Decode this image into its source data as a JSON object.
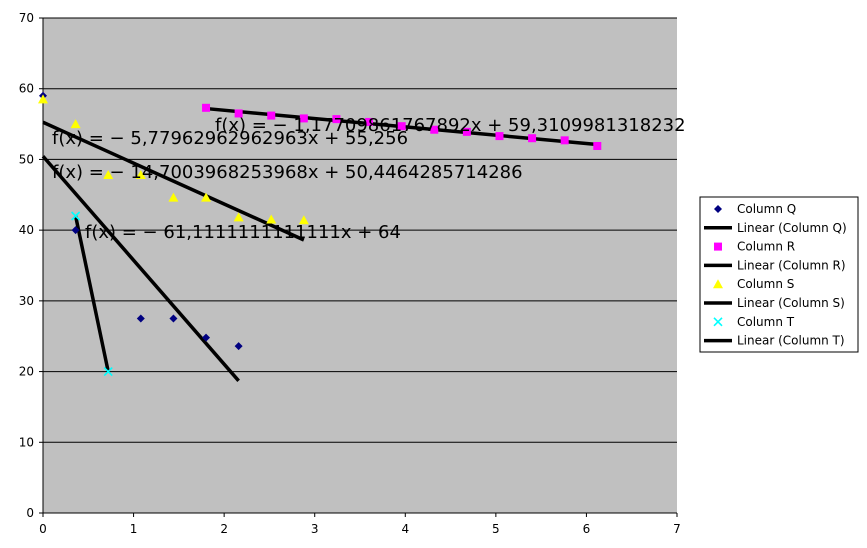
{
  "chart_data": {
    "type": "scatter",
    "xlim": [
      0,
      7
    ],
    "ylim": [
      0,
      70
    ],
    "xticks": [
      "0",
      "1",
      "2",
      "3",
      "4",
      "5",
      "6",
      "7"
    ],
    "yticks": [
      "0",
      "10",
      "20",
      "30",
      "40",
      "50",
      "60",
      "70"
    ],
    "grid": "horizontal",
    "legend_position": "right",
    "plot_background": "#c0c0c0",
    "series": [
      {
        "name": "Column Q",
        "marker": "diamond",
        "color": "#000080",
        "points": [
          [
            0,
            59
          ],
          [
            0.36,
            40
          ],
          [
            1.08,
            27.5
          ],
          [
            1.44,
            27.5
          ],
          [
            1.8,
            24.8
          ],
          [
            2.16,
            23.6
          ]
        ]
      },
      {
        "name": "Column R",
        "marker": "square",
        "color": "#ff00ff",
        "points": [
          [
            1.8,
            57.3
          ],
          [
            2.16,
            56.5
          ],
          [
            2.52,
            56.2
          ],
          [
            2.88,
            55.8
          ],
          [
            3.24,
            55.7
          ],
          [
            3.6,
            55.3
          ],
          [
            3.96,
            54.7
          ],
          [
            4.32,
            54.2
          ],
          [
            4.68,
            53.9
          ],
          [
            5.04,
            53.3
          ],
          [
            5.4,
            53.0
          ],
          [
            5.76,
            52.7
          ],
          [
            6.12,
            51.9
          ]
        ]
      },
      {
        "name": "Column S",
        "marker": "triangle",
        "color": "#ffff00",
        "points": [
          [
            0,
            58.5
          ],
          [
            0.36,
            55
          ],
          [
            0.72,
            47.8
          ],
          [
            1.08,
            47.8
          ],
          [
            1.44,
            44.6
          ],
          [
            1.8,
            44.6
          ],
          [
            2.16,
            41.8
          ],
          [
            2.52,
            41.5
          ],
          [
            2.88,
            41.4
          ]
        ]
      },
      {
        "name": "Column T",
        "marker": "x",
        "color": "#00ffff",
        "points": [
          [
            0.36,
            42
          ],
          [
            0.72,
            20
          ]
        ]
      }
    ],
    "trendlines": [
      {
        "name": "Linear (Column Q)",
        "color": "#000000",
        "slope": -14.7003968253968,
        "intercept": 50.4464285714286,
        "x_range": [
          0,
          2.16
        ],
        "equation": "f(x) = − 14,7003968253968x + 50,4464285714286"
      },
      {
        "name": "Linear (Column R)",
        "color": "#000000",
        "slope": -1.17709861767892,
        "intercept": 59.3109981318232,
        "x_range": [
          1.8,
          6.12
        ],
        "equation": "f(x) = − 1,17709861767892x + 59,3109981318232"
      },
      {
        "name": "Linear (Column S)",
        "color": "#000000",
        "slope": -5.77962962962963,
        "intercept": 55.256,
        "x_range": [
          0,
          2.88
        ],
        "equation": "f(x) = − 5,77962962962963x + 55,256"
      },
      {
        "name": "Linear (Column T)",
        "color": "#000000",
        "slope": -61.1111111111111,
        "intercept": 64,
        "x_range": [
          0.36,
          0.72
        ],
        "equation": "f(x) = − 61,1111111111111x + 64"
      }
    ],
    "legend": [
      "Column Q",
      "Linear (Column Q)",
      "Column R",
      "Linear (Column R)",
      "Column S",
      "Linear (Column S)",
      "Column T",
      "Linear (Column T)"
    ]
  }
}
